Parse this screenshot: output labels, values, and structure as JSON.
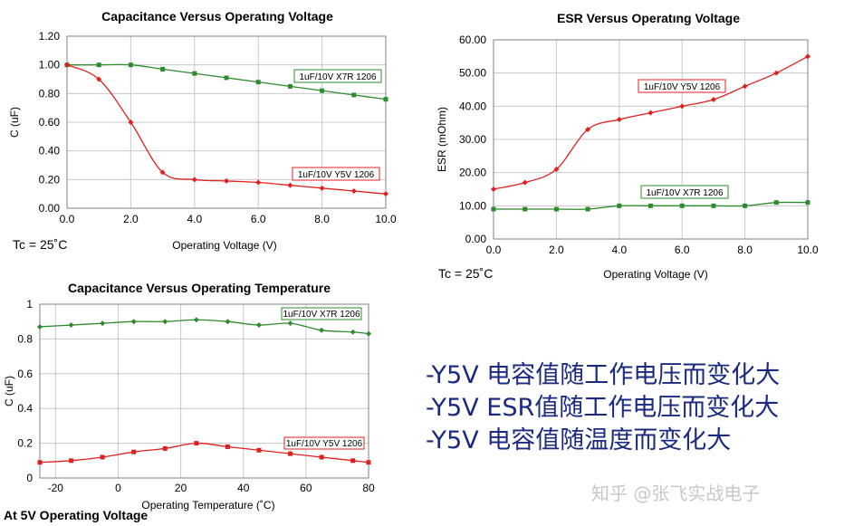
{
  "chart_data": [
    {
      "type": "line",
      "title": "Capacitance Versus Operatıng Voltage",
      "xlabel": "Operating Voltage (V)",
      "ylabel": "C (uF)",
      "xlim": [
        0,
        10
      ],
      "ylim": [
        0,
        1.2
      ],
      "xticks": [
        "0.0",
        "2.0",
        "4.0",
        "6.0",
        "8.0",
        "10.0"
      ],
      "yticks": [
        "0.00",
        "0.20",
        "0.40",
        "0.60",
        "0.80",
        "1.00",
        "1.20"
      ],
      "grid": true,
      "annotation": "Tc = 25˚C",
      "series": [
        {
          "name": "1uF/10V X7R 1206",
          "color": "#2e8b2e",
          "marker": "square",
          "x": [
            0,
            1,
            2,
            3,
            4,
            5,
            6,
            7,
            8,
            9,
            10
          ],
          "y": [
            1.0,
            1.0,
            1.0,
            0.97,
            0.94,
            0.91,
            0.88,
            0.85,
            0.82,
            0.79,
            0.76
          ]
        },
        {
          "name": "1uF/10V Y5V 1206",
          "color": "#e02020",
          "marker": "diamond",
          "x": [
            0,
            1,
            2,
            3,
            4,
            5,
            6,
            7,
            8,
            9,
            10
          ],
          "y": [
            1.0,
            0.9,
            0.6,
            0.25,
            0.2,
            0.19,
            0.18,
            0.16,
            0.14,
            0.12,
            0.1
          ]
        }
      ]
    },
    {
      "type": "line",
      "title": "ESR Versus Operatıng Voltage",
      "xlabel": "Operating Voltage (V)",
      "ylabel": "ESR (mOhm)",
      "xlim": [
        0,
        10
      ],
      "ylim": [
        0,
        60
      ],
      "xticks": [
        "0.0",
        "2.0",
        "4.0",
        "6.0",
        "8.0",
        "10.0"
      ],
      "yticks": [
        "0.00",
        "10.00",
        "20.00",
        "30.00",
        "40.00",
        "50.00",
        "60.00"
      ],
      "grid": true,
      "annotation": "Tc = 25˚C",
      "series": [
        {
          "name": "1uF/10V Y5V 1206",
          "color": "#e02020",
          "marker": "diamond",
          "x": [
            0,
            1,
            2,
            3,
            4,
            5,
            6,
            7,
            8,
            9,
            10
          ],
          "y": [
            15,
            17,
            21,
            33,
            36,
            38,
            40,
            42,
            46,
            50,
            55
          ]
        },
        {
          "name": "1uF/10V X7R 1206",
          "color": "#2e8b2e",
          "marker": "square",
          "x": [
            0,
            1,
            2,
            3,
            4,
            5,
            6,
            7,
            8,
            9,
            10
          ],
          "y": [
            9,
            9,
            9,
            9,
            10,
            10,
            10,
            10,
            10,
            11,
            11
          ]
        }
      ]
    },
    {
      "type": "line",
      "title": "Capacitance Versus Operating Temperature",
      "xlabel": "Operating Temperature (˚C)",
      "ylabel": "C (uF)",
      "xlim": [
        -25,
        80
      ],
      "ylim": [
        0,
        1
      ],
      "xticks": [
        "-20",
        "0",
        "20",
        "40",
        "60",
        "80"
      ],
      "yticks": [
        "0",
        "0.2",
        "0.4",
        "0.6",
        "0.8",
        "1"
      ],
      "grid": true,
      "annotation": "At 5V Operating Voltage",
      "series": [
        {
          "name": "1uF/10V X7R 1206",
          "color": "#2e8b2e",
          "marker": "diamond",
          "x": [
            -25,
            -15,
            -5,
            5,
            15,
            25,
            35,
            45,
            55,
            65,
            75,
            80
          ],
          "y": [
            0.87,
            0.88,
            0.89,
            0.9,
            0.9,
            0.91,
            0.9,
            0.88,
            0.89,
            0.85,
            0.84,
            0.83
          ]
        },
        {
          "name": "1uF/10V Y5V 1206",
          "color": "#e02020",
          "marker": "square",
          "x": [
            -25,
            -15,
            -5,
            5,
            15,
            25,
            35,
            45,
            55,
            65,
            75,
            80
          ],
          "y": [
            0.09,
            0.1,
            0.12,
            0.15,
            0.17,
            0.2,
            0.18,
            0.16,
            0.14,
            0.12,
            0.1,
            0.09
          ]
        }
      ]
    }
  ],
  "notes": [
    "-Y5V 电容值随工作电压而变化大",
    "-Y5V ESR值随工作电压而变化大",
    "-Y5V 电容值随温度而变化大"
  ],
  "watermark": "知乎 @张飞实战电子"
}
